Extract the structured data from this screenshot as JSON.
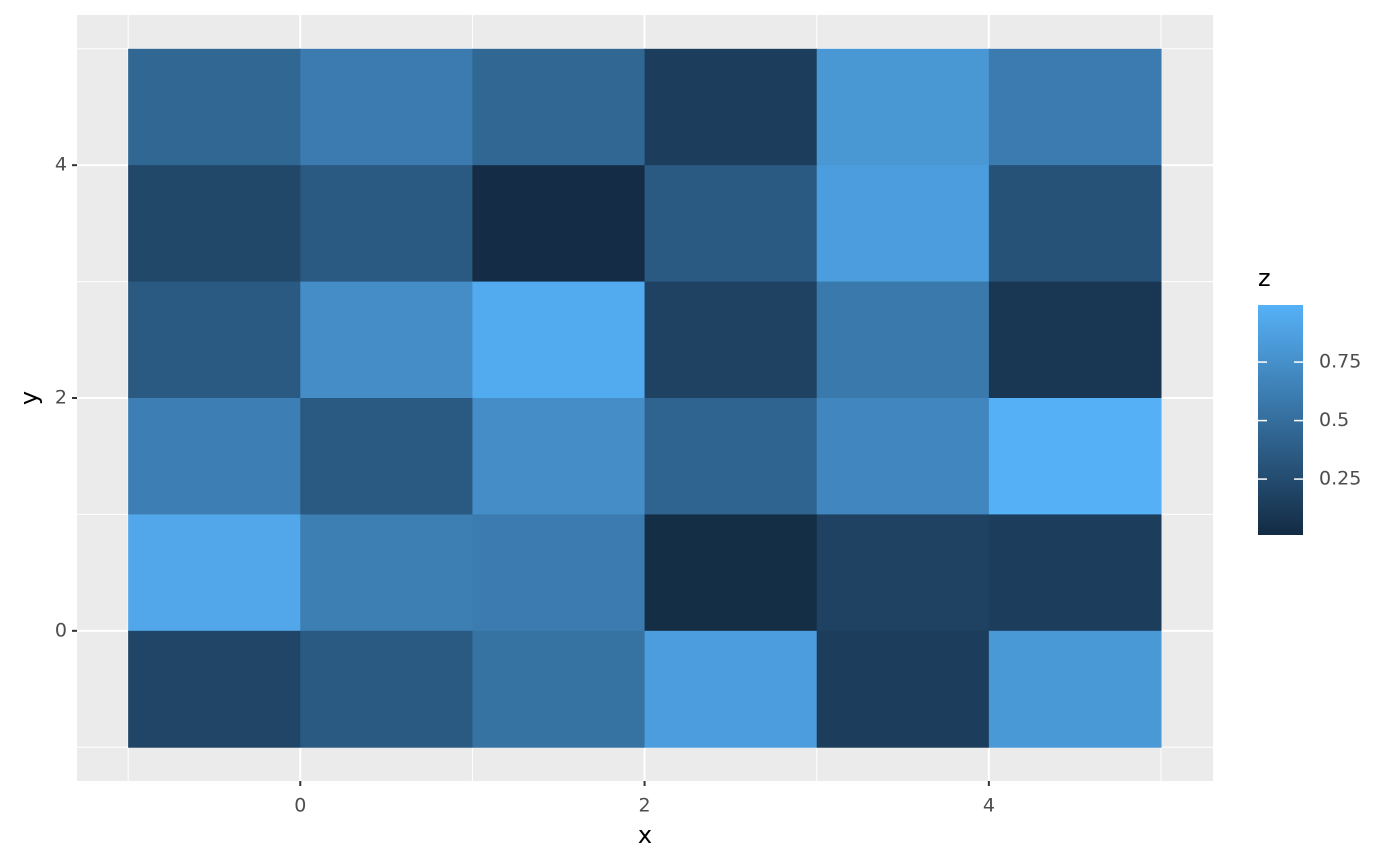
{
  "chart_data": {
    "type": "heatmap",
    "x_label": "x",
    "y_label": "y",
    "legend_title": "z",
    "x": [
      -0.5,
      0.5,
      1.5,
      2.5,
      3.5,
      4.5,
      -0.5,
      0.5,
      1.5,
      2.5,
      3.5,
      4.5,
      -0.5,
      0.5,
      1.5,
      2.5,
      3.5,
      4.5,
      -0.5,
      0.5,
      1.5,
      2.5,
      3.5,
      4.5,
      -0.5,
      0.5,
      1.5,
      2.5,
      3.5,
      4.5,
      -0.5,
      0.5,
      1.5,
      2.5,
      3.5,
      4.5
    ],
    "y": [
      4.5,
      4.5,
      4.5,
      4.5,
      4.5,
      4.5,
      3.5,
      3.5,
      3.5,
      3.5,
      3.5,
      3.5,
      2.5,
      2.5,
      2.5,
      2.5,
      2.5,
      2.5,
      1.5,
      1.5,
      1.5,
      1.5,
      1.5,
      1.5,
      0.5,
      0.5,
      0.5,
      0.5,
      0.5,
      0.5,
      -0.5,
      -0.5,
      -0.5,
      -0.5,
      -0.5,
      -0.5
    ],
    "z": [
      0.45,
      0.6,
      0.45,
      0.15,
      0.8,
      0.6,
      0.22,
      0.35,
      0.02,
      0.35,
      0.85,
      0.3,
      0.35,
      0.73,
      0.95,
      0.18,
      0.58,
      0.1,
      0.63,
      0.35,
      0.73,
      0.43,
      0.68,
      0.99,
      0.92,
      0.62,
      0.6,
      0.03,
      0.18,
      0.15,
      0.2,
      0.35,
      0.53,
      0.85,
      0.15,
      0.82
    ],
    "tile_width": 1,
    "tile_height": 1,
    "colors": [
      "#132B43",
      "#56B1F7"
    ],
    "zlim": [
      0.011,
      0.994
    ],
    "zticks": [
      0.25,
      0.5,
      0.75
    ],
    "xlim": [
      -1.297,
      5.302
    ],
    "ylim": [
      -1.29,
      5.29
    ],
    "xticks": [
      0,
      2,
      4
    ],
    "yticks": [
      0,
      2,
      4
    ],
    "minor_xticks": [
      -1,
      1,
      3,
      5
    ],
    "minor_yticks": [
      -1,
      1,
      3,
      5
    ],
    "grid": true
  }
}
